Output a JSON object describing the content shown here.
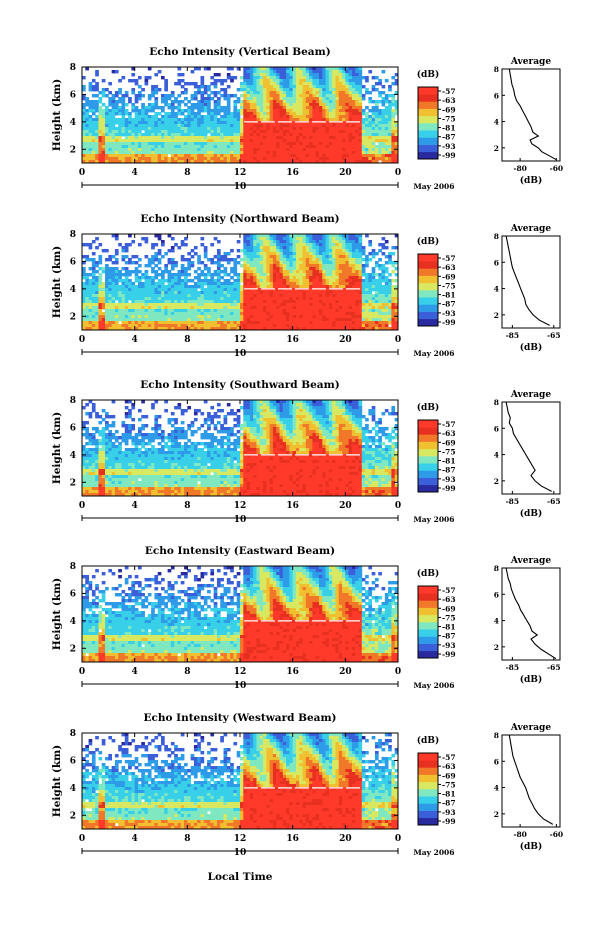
{
  "figure": {
    "xlabel_bottom": "Local Time",
    "date_label": "May 2006",
    "day_marker": "10"
  },
  "colors": [
    "#2a2aa0",
    "#3a5fd8",
    "#2e9be8",
    "#38d0e8",
    "#7fe8c0",
    "#d8e860",
    "#f0c030",
    "#f07828",
    "#e83020",
    "#ff3a2a"
  ],
  "chart_data": [
    {
      "type": "heatmap",
      "title": "Echo Intensity (Vertical Beam)",
      "ylabel": "Height (km)",
      "x_ticks": [
        "0",
        "4",
        "8",
        "12",
        "16",
        "20",
        "0"
      ],
      "y_ticks": [
        "2",
        "4",
        "6",
        "8"
      ],
      "xlim": [
        0,
        24
      ],
      "ylim": [
        1,
        8
      ],
      "colorbar": {
        "unit": "(dB)",
        "ticks": [
          "-57",
          "-63",
          "-69",
          "-75",
          "-81",
          "-87",
          "-93",
          "-99"
        ]
      },
      "profile": {
        "title": "Average",
        "xlabel": "(dB)",
        "x_ticks": [
          "-80",
          "-60"
        ],
        "y_ticks": [
          "2",
          "4",
          "6",
          "8"
        ],
        "xlim": [
          -90,
          -58
        ],
        "points": [
          [
            -86,
            8.0
          ],
          [
            -85.5,
            7.6
          ],
          [
            -85,
            7.2
          ],
          [
            -84.5,
            6.8
          ],
          [
            -83.5,
            6.4
          ],
          [
            -83,
            6.0
          ],
          [
            -82,
            5.6
          ],
          [
            -80,
            5.2
          ],
          [
            -78.5,
            4.8
          ],
          [
            -77,
            4.4
          ],
          [
            -75.5,
            4.0
          ],
          [
            -74,
            3.6
          ],
          [
            -73,
            3.2
          ],
          [
            -70,
            2.9
          ],
          [
            -74.5,
            2.6
          ],
          [
            -73.5,
            2.3
          ],
          [
            -70,
            2.0
          ],
          [
            -68,
            1.7
          ],
          [
            -64,
            1.4
          ],
          [
            -60,
            1.1
          ]
        ]
      }
    },
    {
      "type": "heatmap",
      "title": "Echo Intensity (Northward Beam)",
      "ylabel": "Height (km)",
      "x_ticks": [
        "0",
        "4",
        "8",
        "12",
        "16",
        "20",
        "0"
      ],
      "y_ticks": [
        "2",
        "4",
        "6",
        "8"
      ],
      "xlim": [
        0,
        24
      ],
      "ylim": [
        1,
        8
      ],
      "colorbar": {
        "unit": "(dB)",
        "ticks": [
          "-57",
          "-63",
          "-69",
          "-75",
          "-81",
          "-87",
          "-93",
          "-99"
        ]
      },
      "profile": {
        "title": "Average",
        "xlabel": "(dB)",
        "x_ticks": [
          "-85",
          "-65"
        ],
        "y_ticks": [
          "2",
          "4",
          "6",
          "8"
        ],
        "xlim": [
          -90,
          -62
        ],
        "points": [
          [
            -88,
            8.0
          ],
          [
            -87.5,
            7.6
          ],
          [
            -87,
            7.2
          ],
          [
            -86.5,
            6.8
          ],
          [
            -86,
            6.4
          ],
          [
            -85.5,
            6.0
          ],
          [
            -85,
            5.6
          ],
          [
            -84,
            5.2
          ],
          [
            -83,
            4.8
          ],
          [
            -82,
            4.4
          ],
          [
            -81,
            4.0
          ],
          [
            -80,
            3.6
          ],
          [
            -79,
            3.2
          ],
          [
            -78.5,
            2.8
          ],
          [
            -77,
            2.4
          ],
          [
            -75,
            2.0
          ],
          [
            -72,
            1.6
          ],
          [
            -67,
            1.2
          ]
        ]
      }
    },
    {
      "type": "heatmap",
      "title": "Echo Intensity (Southward Beam)",
      "ylabel": "Height (km)",
      "x_ticks": [
        "0",
        "4",
        "8",
        "12",
        "16",
        "20",
        "0"
      ],
      "y_ticks": [
        "2",
        "4",
        "6",
        "8"
      ],
      "xlim": [
        0,
        24
      ],
      "ylim": [
        1,
        8
      ],
      "colorbar": {
        "unit": "(dB)",
        "ticks": [
          "-57",
          "-63",
          "-69",
          "-75",
          "-81",
          "-87",
          "-93",
          "-99"
        ]
      },
      "profile": {
        "title": "Average",
        "xlabel": "(dB)",
        "x_ticks": [
          "-85",
          "-65"
        ],
        "y_ticks": [
          "2",
          "4",
          "6",
          "8"
        ],
        "xlim": [
          -90,
          -62
        ],
        "points": [
          [
            -88,
            8.0
          ],
          [
            -87.5,
            7.6
          ],
          [
            -87,
            7.2
          ],
          [
            -86,
            6.8
          ],
          [
            -86.5,
            6.4
          ],
          [
            -85,
            6.0
          ],
          [
            -84.5,
            5.6
          ],
          [
            -83,
            5.2
          ],
          [
            -81.5,
            4.8
          ],
          [
            -80,
            4.4
          ],
          [
            -78.5,
            4.0
          ],
          [
            -77,
            3.6
          ],
          [
            -75.5,
            3.2
          ],
          [
            -74,
            2.8
          ],
          [
            -76,
            2.4
          ],
          [
            -74,
            2.0
          ],
          [
            -71,
            1.6
          ],
          [
            -66,
            1.2
          ]
        ]
      }
    },
    {
      "type": "heatmap",
      "title": "Echo Intensity (Eastward Beam)",
      "ylabel": "Height (km)",
      "x_ticks": [
        "0",
        "4",
        "8",
        "12",
        "16",
        "20",
        "0"
      ],
      "y_ticks": [
        "2",
        "4",
        "6",
        "8"
      ],
      "xlim": [
        0,
        24
      ],
      "ylim": [
        1,
        8
      ],
      "colorbar": {
        "unit": "(dB)",
        "ticks": [
          "-57",
          "-63",
          "-69",
          "-75",
          "-81",
          "-87",
          "-93",
          "-99"
        ]
      },
      "profile": {
        "title": "Average",
        "xlabel": "(dB)",
        "x_ticks": [
          "-85",
          "-65"
        ],
        "y_ticks": [
          "2",
          "4",
          "6",
          "8"
        ],
        "xlim": [
          -90,
          -62
        ],
        "points": [
          [
            -88,
            8.0
          ],
          [
            -87.5,
            7.6
          ],
          [
            -87,
            7.2
          ],
          [
            -86,
            6.8
          ],
          [
            -85.5,
            6.4
          ],
          [
            -84.5,
            6.0
          ],
          [
            -83.5,
            5.6
          ],
          [
            -82,
            5.2
          ],
          [
            -81,
            4.8
          ],
          [
            -79.5,
            4.4
          ],
          [
            -78,
            4.0
          ],
          [
            -76.5,
            3.6
          ],
          [
            -75.5,
            3.2
          ],
          [
            -73,
            2.9
          ],
          [
            -76,
            2.6
          ],
          [
            -74,
            2.2
          ],
          [
            -71,
            1.8
          ],
          [
            -67,
            1.4
          ],
          [
            -64,
            1.1
          ]
        ]
      }
    },
    {
      "type": "heatmap",
      "title": "Echo Intensity (Westward Beam)",
      "ylabel": "Height (km)",
      "x_ticks": [
        "0",
        "4",
        "8",
        "12",
        "16",
        "20",
        "0"
      ],
      "y_ticks": [
        "2",
        "4",
        "6",
        "8"
      ],
      "xlim": [
        0,
        24
      ],
      "ylim": [
        1,
        8
      ],
      "colorbar": {
        "unit": "(dB)",
        "ticks": [
          "-57",
          "-63",
          "-69",
          "-75",
          "-81",
          "-87",
          "-93",
          "-99"
        ]
      },
      "profile": {
        "title": "Average",
        "xlabel": "(dB)",
        "x_ticks": [
          "-80",
          "-60"
        ],
        "y_ticks": [
          "2",
          "4",
          "6",
          "8"
        ],
        "xlim": [
          -90,
          -58
        ],
        "points": [
          [
            -86,
            8.0
          ],
          [
            -85.5,
            7.6
          ],
          [
            -85,
            7.2
          ],
          [
            -84.5,
            6.8
          ],
          [
            -84,
            6.4
          ],
          [
            -83,
            6.0
          ],
          [
            -82,
            5.6
          ],
          [
            -81,
            5.2
          ],
          [
            -80,
            4.8
          ],
          [
            -78.5,
            4.4
          ],
          [
            -77,
            4.0
          ],
          [
            -76,
            3.6
          ],
          [
            -75,
            3.2
          ],
          [
            -73.5,
            2.8
          ],
          [
            -72,
            2.4
          ],
          [
            -70,
            2.0
          ],
          [
            -67,
            1.6
          ],
          [
            -62,
            1.2
          ]
        ]
      }
    }
  ]
}
